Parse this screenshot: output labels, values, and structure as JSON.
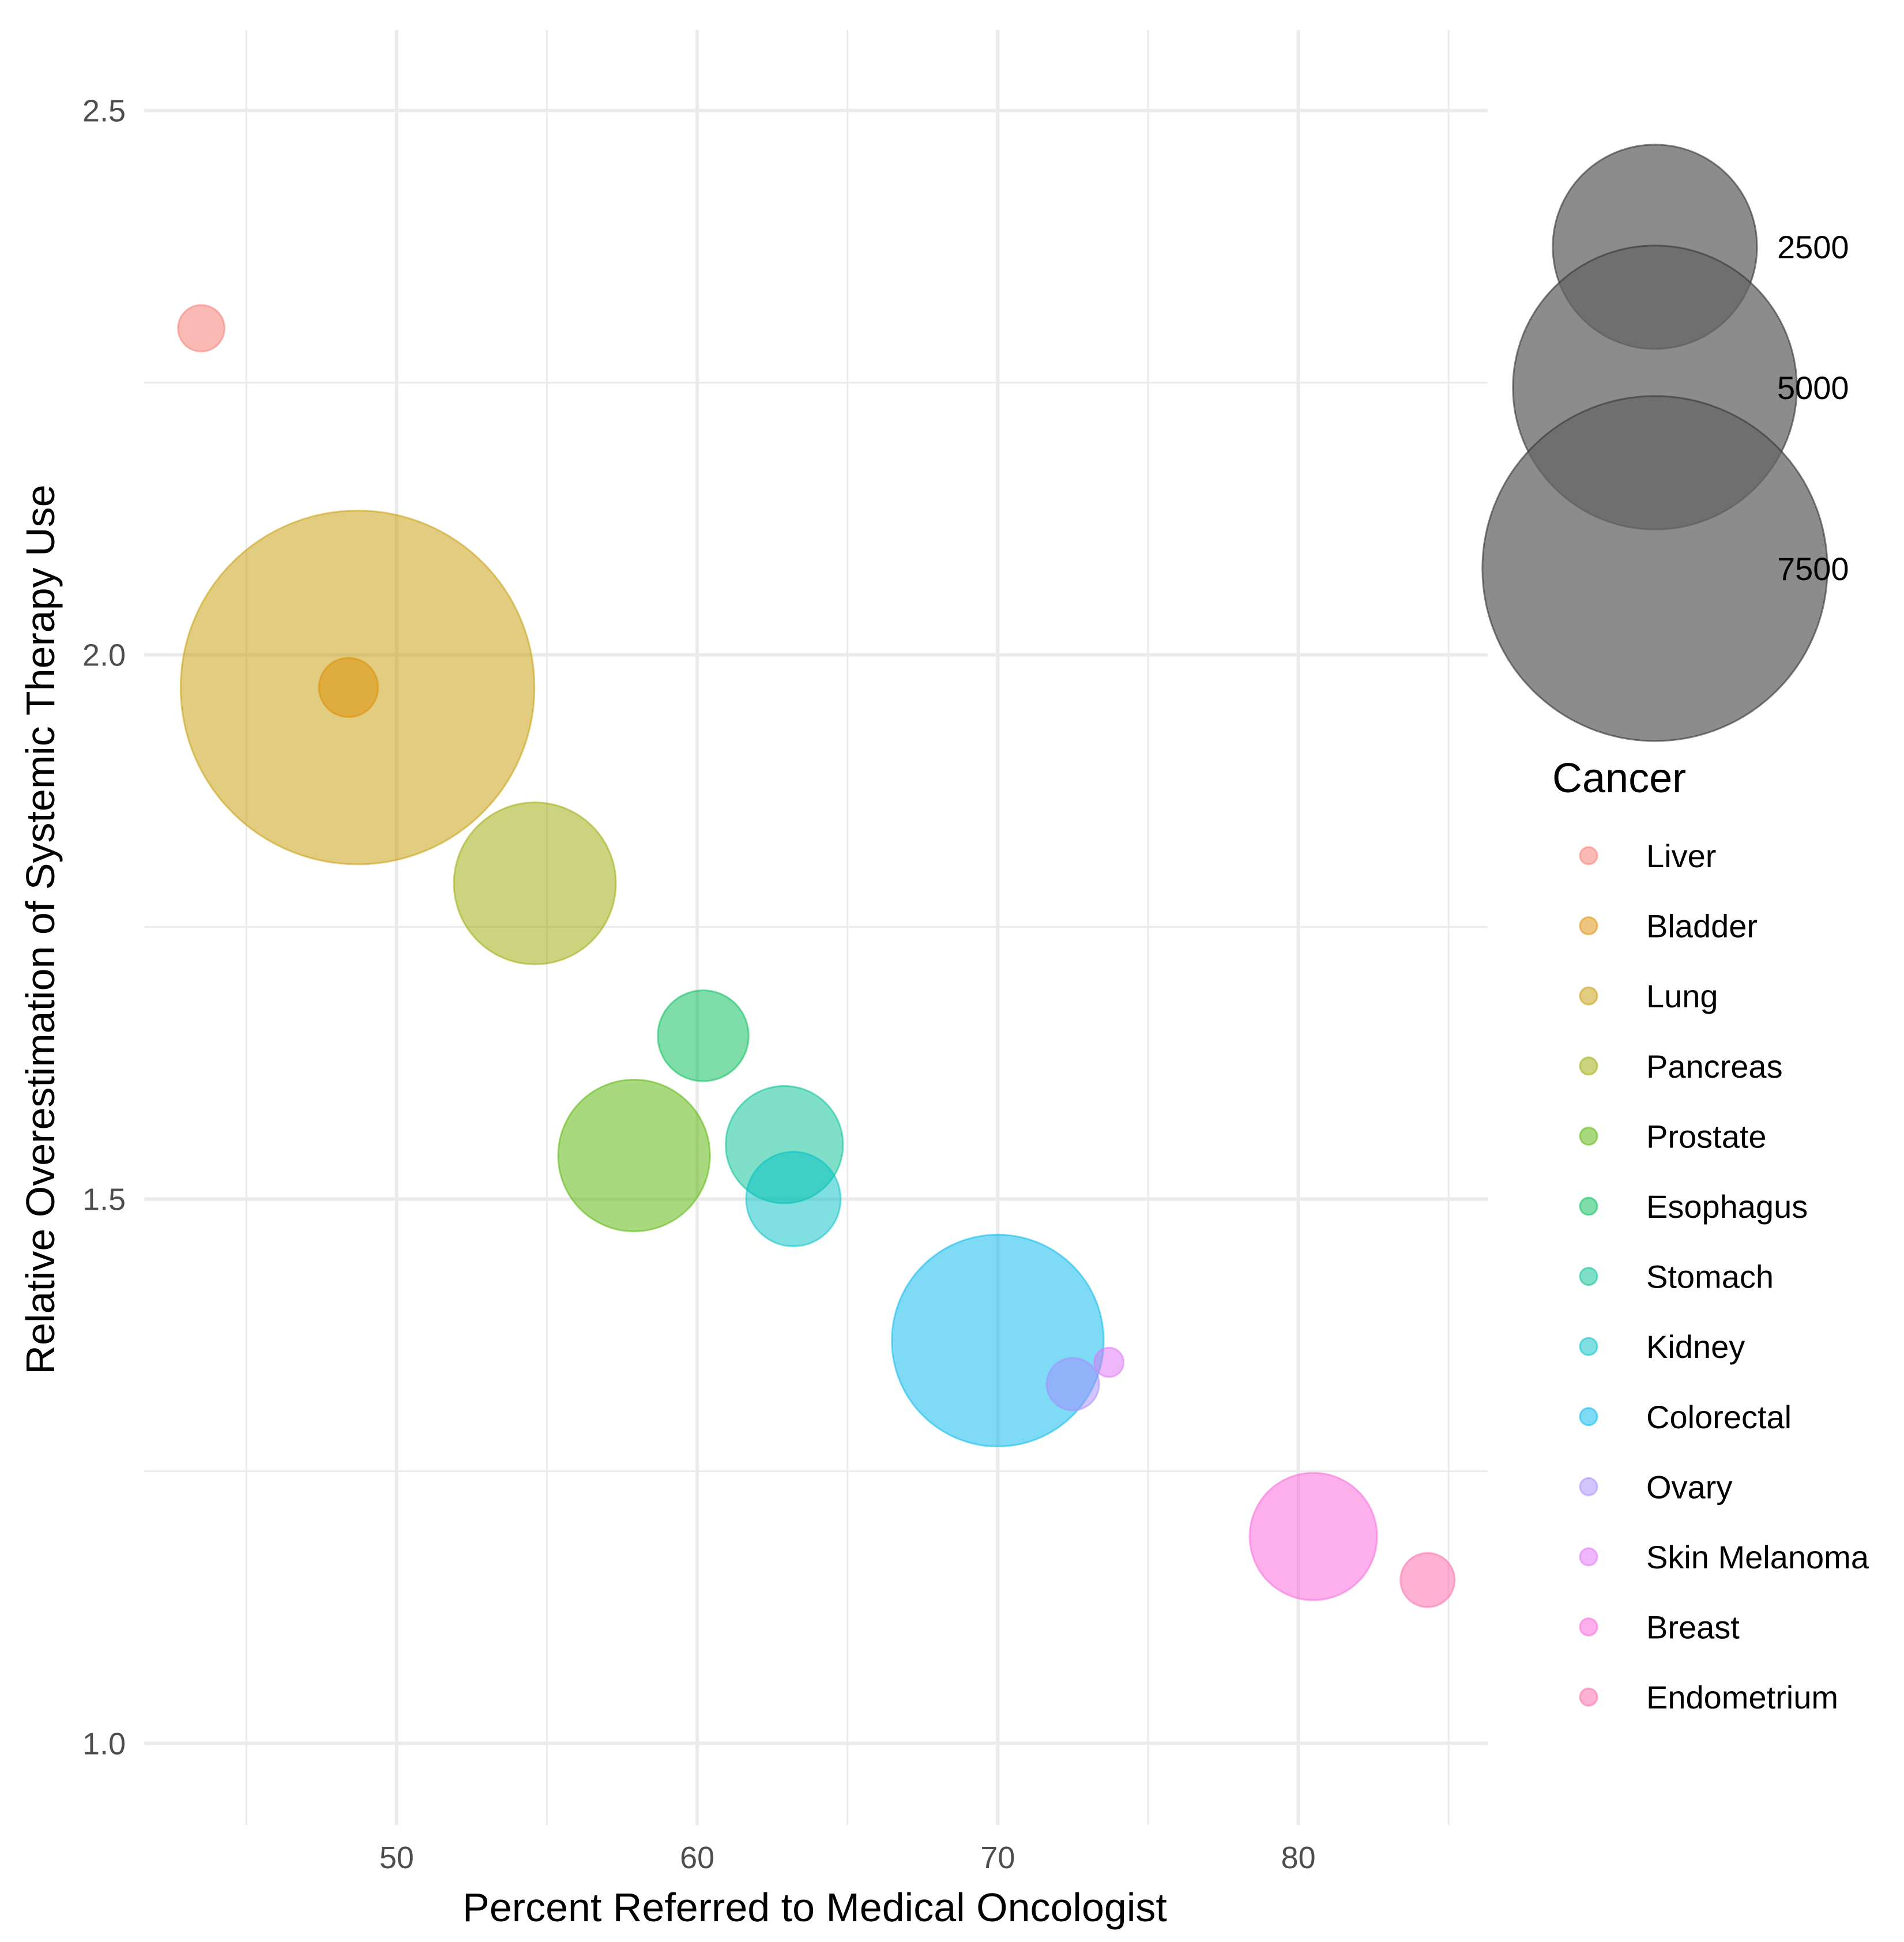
{
  "chart_data": {
    "type": "scatter",
    "subtype": "bubble",
    "xlabel": "Percent Referred to Medical Oncologist",
    "ylabel": "Relative Overestimation of Systemic Therapy Use",
    "xlim": [
      41.6,
      86.3
    ],
    "ylim": [
      0.925,
      2.574
    ],
    "x_ticks": [
      50,
      60,
      70,
      80
    ],
    "x_tick_labels": [
      "50",
      "60",
      "70",
      "80"
    ],
    "x_minor_ticks": [
      45,
      55,
      65,
      75,
      85
    ],
    "y_ticks": [
      1.0,
      1.5,
      2.0,
      2.5
    ],
    "y_tick_labels": [
      "1.0",
      "1.5",
      "2.0",
      "2.5"
    ],
    "y_minor_ticks": [
      1.25,
      1.75,
      2.25
    ],
    "grid": true,
    "size_legend": {
      "title": "",
      "breaks": [
        2500,
        5000,
        7500
      ],
      "labels": [
        "2500",
        "5000",
        "7500"
      ],
      "color": "#666666"
    },
    "color_legend": {
      "title": "Cancer",
      "position": "right"
    },
    "series": [
      {
        "name": "Liver",
        "color": "#F8766D",
        "x": 43.5,
        "y": 2.3,
        "size": 80
      },
      {
        "name": "Bladder",
        "color": "#DE8C00",
        "x": 48.4,
        "y": 1.97,
        "size": 150
      },
      {
        "name": "Lung",
        "color": "#C49A00",
        "x": 48.7,
        "y": 1.97,
        "size": 7900
      },
      {
        "name": "Pancreas",
        "color": "#99A800",
        "x": 54.6,
        "y": 1.79,
        "size": 1520
      },
      {
        "name": "Prostate",
        "color": "#53B400",
        "x": 57.9,
        "y": 1.54,
        "size": 1320
      },
      {
        "name": "Esophagus",
        "color": "#00BC56",
        "x": 60.2,
        "y": 1.65,
        "size": 420
      },
      {
        "name": "Stomach",
        "color": "#00C094",
        "x": 62.9,
        "y": 1.55,
        "size": 750
      },
      {
        "name": "Kidney",
        "color": "#00BFC4",
        "x": 63.2,
        "y": 1.5,
        "size": 460
      },
      {
        "name": "Colorectal",
        "color": "#00B6EB",
        "x": 70.0,
        "y": 1.37,
        "size": 2700
      },
      {
        "name": "Ovary",
        "color": "#A58AFF",
        "x": 72.5,
        "y": 1.33,
        "size": 110
      },
      {
        "name": "Skin Melanoma",
        "color": "#DF70F8",
        "x": 73.7,
        "y": 1.35,
        "size": 20
      },
      {
        "name": "Breast",
        "color": "#FB61D7",
        "x": 80.5,
        "y": 1.19,
        "size": 900
      },
      {
        "name": "Endometrium",
        "color": "#FF66A8",
        "x": 84.3,
        "y": 1.15,
        "size": 120
      }
    ]
  }
}
